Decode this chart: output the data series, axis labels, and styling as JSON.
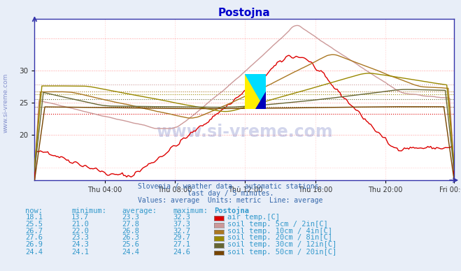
{
  "title": "Postojna",
  "subtitle1": "Slovenia / weather data - automatic stations.",
  "subtitle2": "last day / 5 minutes.",
  "subtitle3": "Values: average  Units: metric  Line: average",
  "watermark": "www.si-vreme.com",
  "background_color": "#e8eef8",
  "plot_bg_color": "#ffffff",
  "grid_color_h": "#ff9999",
  "grid_color_v": "#ffcccc",
  "title_color": "#0000cc",
  "text_color": "#3388aa",
  "series": [
    {
      "label": "air temp.[C]",
      "color": "#dd0000",
      "linewidth": 1.0,
      "now": 18.1,
      "min": 13.7,
      "avg": 23.3,
      "max": 32.3
    },
    {
      "label": "soil temp. 5cm / 2in[C]",
      "color": "#cc9999",
      "linewidth": 1.0,
      "now": 25.5,
      "min": 21.0,
      "avg": 27.8,
      "max": 37.3
    },
    {
      "label": "soil temp. 10cm / 4in[C]",
      "color": "#aa7722",
      "linewidth": 1.0,
      "now": 26.7,
      "min": 22.0,
      "avg": 26.8,
      "max": 32.7
    },
    {
      "label": "soil temp. 20cm / 8in[C]",
      "color": "#998800",
      "linewidth": 1.0,
      "now": 27.6,
      "min": 23.3,
      "avg": 26.3,
      "max": 29.7
    },
    {
      "label": "soil temp. 30cm / 12in[C]",
      "color": "#666633",
      "linewidth": 1.0,
      "now": 26.9,
      "min": 24.3,
      "avg": 25.6,
      "max": 27.1
    },
    {
      "label": "soil temp. 50cm / 20in[C]",
      "color": "#774400",
      "linewidth": 1.0,
      "now": 24.4,
      "min": 24.1,
      "avg": 24.4,
      "max": 24.6
    }
  ],
  "now_values": [
    18.1,
    25.5,
    26.7,
    27.6,
    26.9,
    24.4
  ],
  "min_values": [
    13.7,
    21.0,
    22.0,
    23.3,
    24.3,
    24.1
  ],
  "avg_values": [
    23.3,
    27.8,
    26.8,
    26.3,
    25.6,
    24.4
  ],
  "max_values": [
    32.3,
    37.3,
    32.7,
    29.7,
    27.1,
    24.6
  ],
  "ylim": [
    13,
    38
  ],
  "yticks": [
    20,
    25,
    30
  ],
  "num_points": 288,
  "x_tick_labels": [
    "Thu 04:00",
    "Thu 08:00",
    "Thu 12:00",
    "Thu 16:00",
    "Thu 20:00",
    "Fri 00:00"
  ],
  "x_tick_positions": [
    48,
    96,
    144,
    192,
    240,
    287
  ]
}
